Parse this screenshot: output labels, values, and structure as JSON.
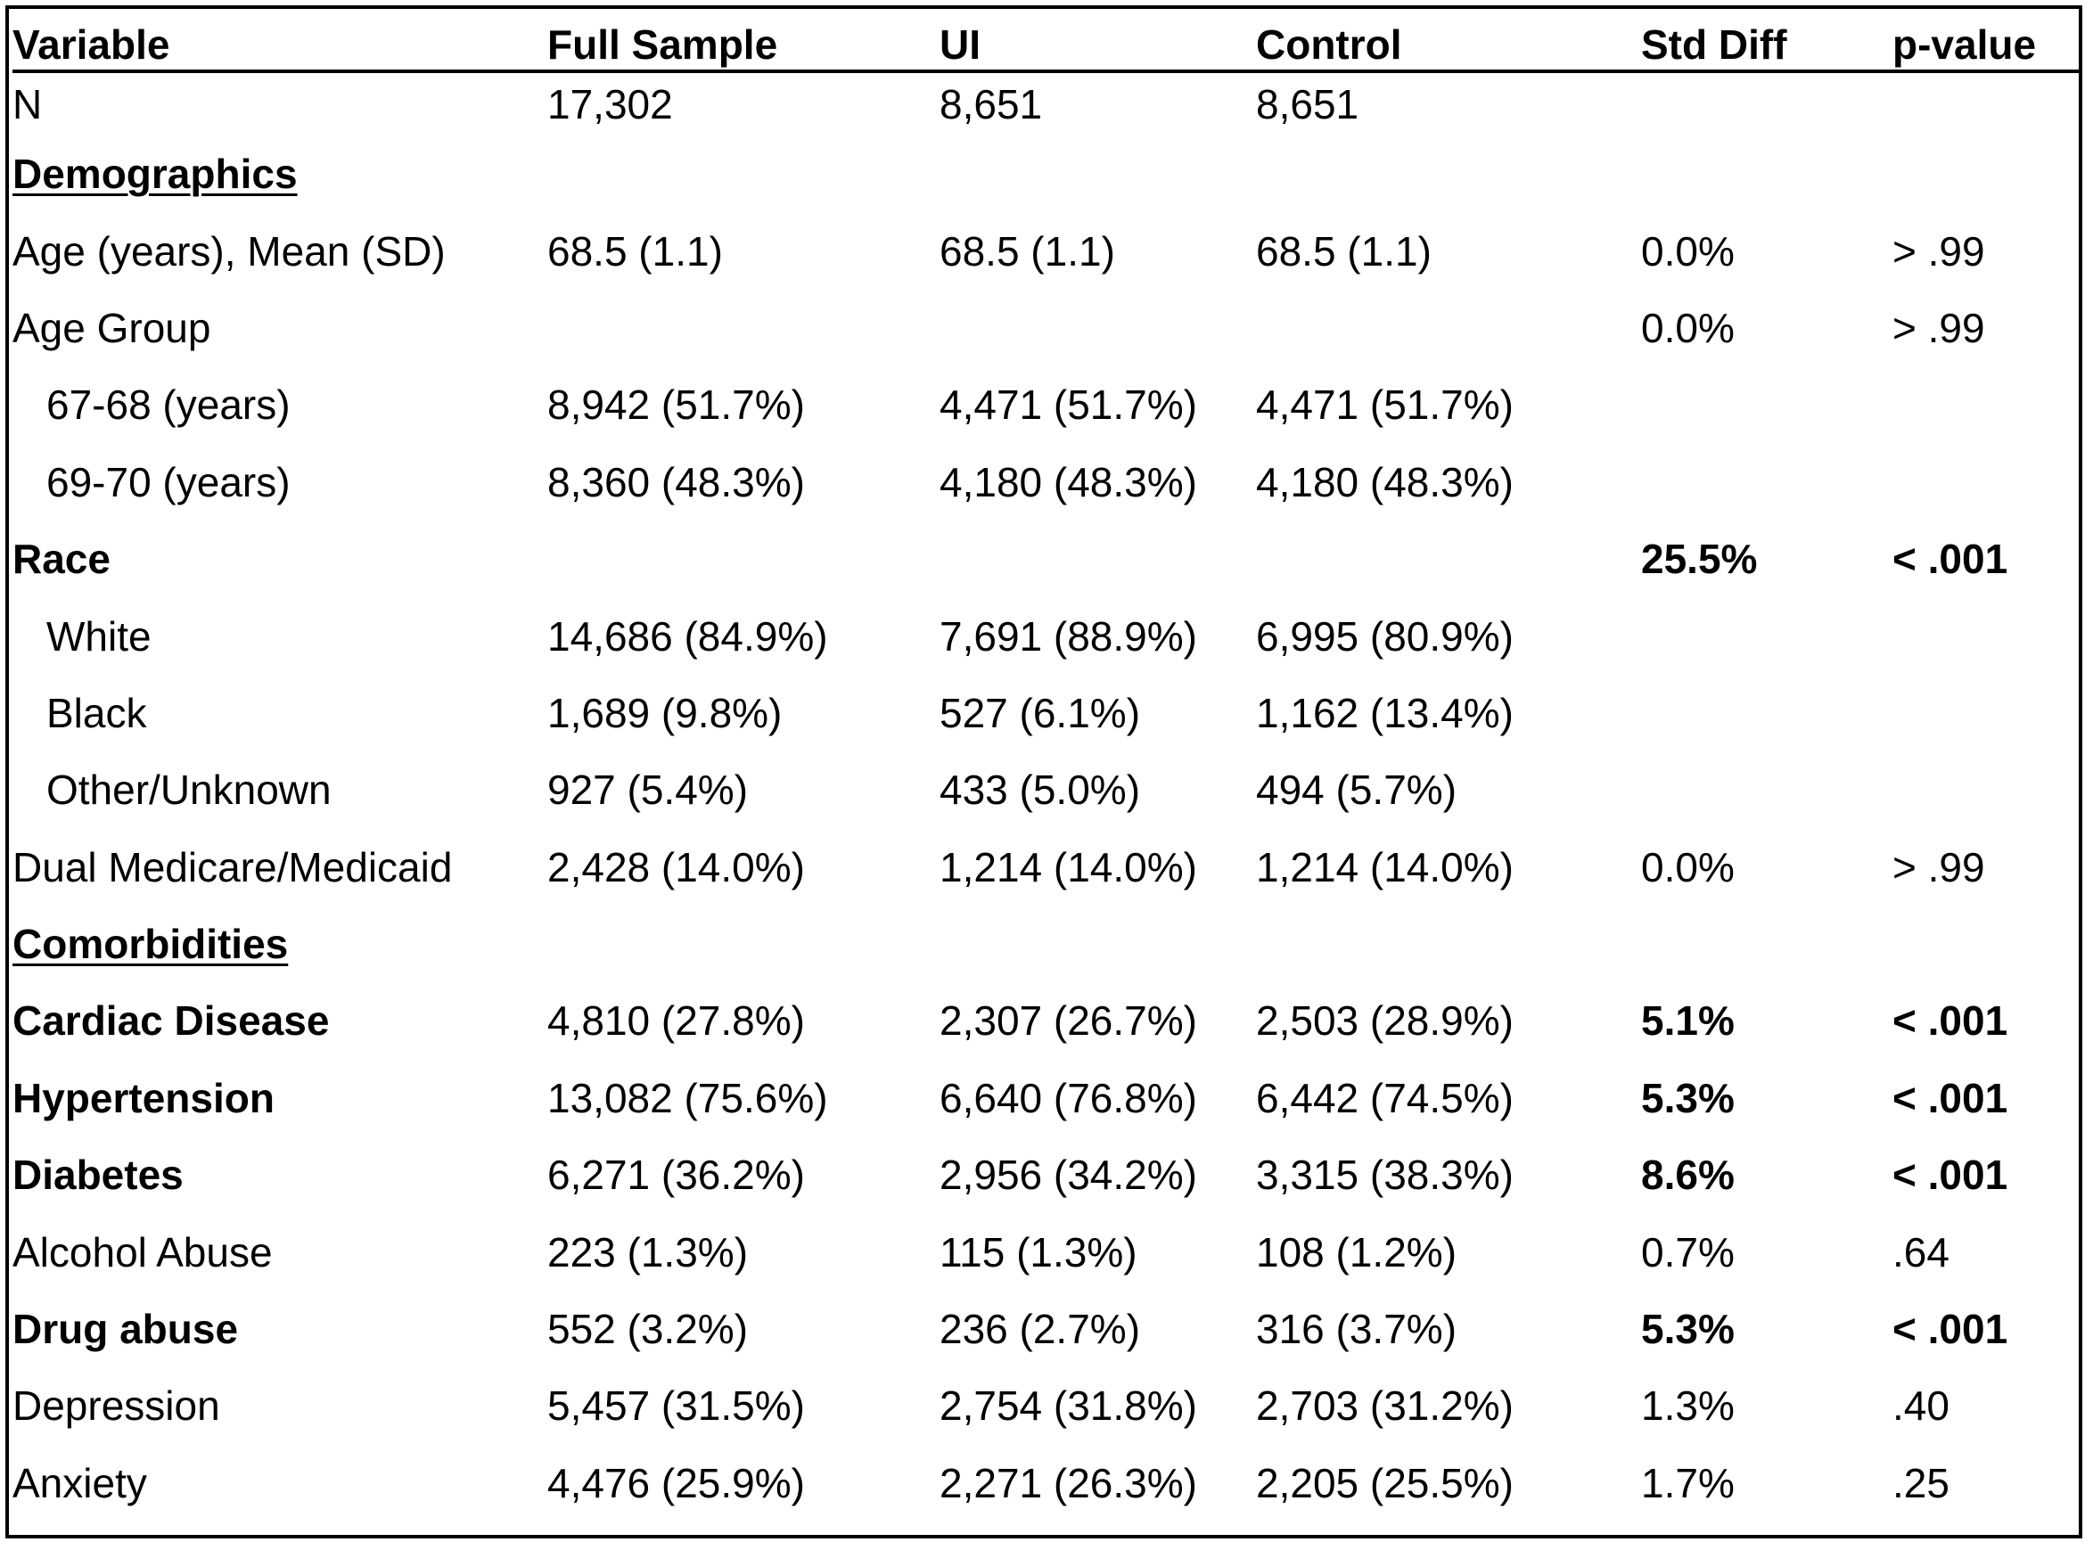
{
  "columns": [
    "Variable",
    "Full Sample",
    "UI",
    "Control",
    "Std Diff",
    "p-value"
  ],
  "n_row": {
    "label": "N",
    "full": "17,302",
    "ui": "8,651",
    "control": "8,651"
  },
  "sections": {
    "demographics": "Demographics",
    "comorbidities": "Comorbidities"
  },
  "rows": {
    "age_mean": {
      "label": "Age (years), Mean (SD)",
      "full": "68.5 (1.1)",
      "ui": "68.5 (1.1)",
      "control": "68.5 (1.1)",
      "std": "0.0%",
      "p": "> .99"
    },
    "age_group": {
      "label": "Age Group",
      "std": "0.0%",
      "p": "> .99"
    },
    "age_67_68": {
      "label": "67-68 (years)",
      "full": "8,942 (51.7%)",
      "ui": "4,471 (51.7%)",
      "control": "4,471 (51.7%)"
    },
    "age_69_70": {
      "label": "69-70 (years)",
      "full": "8,360 (48.3%)",
      "ui": "4,180 (48.3%)",
      "control": "4,180 (48.3%)"
    },
    "race": {
      "label": "Race",
      "std": "25.5%",
      "p": "< .001"
    },
    "white": {
      "label": "White",
      "full": "14,686 (84.9%)",
      "ui": "7,691 (88.9%)",
      "control": "6,995 (80.9%)"
    },
    "black": {
      "label": "Black",
      "full": "1,689 (9.8%)",
      "ui": "527 (6.1%)",
      "control": "1,162 (13.4%)"
    },
    "other_unknown": {
      "label": "Other/Unknown",
      "full": "927 (5.4%)",
      "ui": "433 (5.0%)",
      "control": "494 (5.7%)"
    },
    "dual": {
      "label": "Dual Medicare/Medicaid",
      "full": "2,428 (14.0%)",
      "ui": "1,214 (14.0%)",
      "control": "1,214 (14.0%)",
      "std": "0.0%",
      "p": "> .99"
    },
    "cardiac": {
      "label": "Cardiac Disease",
      "full": "4,810 (27.8%)",
      "ui": "2,307 (26.7%)",
      "control": "2,503 (28.9%)",
      "std": "5.1%",
      "p": "< .001"
    },
    "hypertension": {
      "label": "Hypertension",
      "full": "13,082 (75.6%)",
      "ui": "6,640 (76.8%)",
      "control": "6,442 (74.5%)",
      "std": "5.3%",
      "p": "< .001"
    },
    "diabetes": {
      "label": "Diabetes",
      "full": "6,271 (36.2%)",
      "ui": "2,956 (34.2%)",
      "control": "3,315 (38.3%)",
      "std": "8.6%",
      "p": "< .001"
    },
    "alcohol": {
      "label": "Alcohol Abuse",
      "full": "223 (1.3%)",
      "ui": "115 (1.3%)",
      "control": "108 (1.2%)",
      "std": "0.7%",
      "p": ".64"
    },
    "drug": {
      "label": "Drug abuse",
      "full": "552 (3.2%)",
      "ui": "236 (2.7%)",
      "control": "316 (3.7%)",
      "std": "5.3%",
      "p": "< .001"
    },
    "depression": {
      "label": "Depression",
      "full": "5,457 (31.5%)",
      "ui": "2,754 (31.8%)",
      "control": "2,703 (31.2%)",
      "std": "1.3%",
      "p": ".40"
    },
    "anxiety": {
      "label": "Anxiety",
      "full": "4,476 (25.9%)",
      "ui": "2,271 (26.3%)",
      "control": "2,205 (25.5%)",
      "std": "1.7%",
      "p": ".25"
    }
  }
}
